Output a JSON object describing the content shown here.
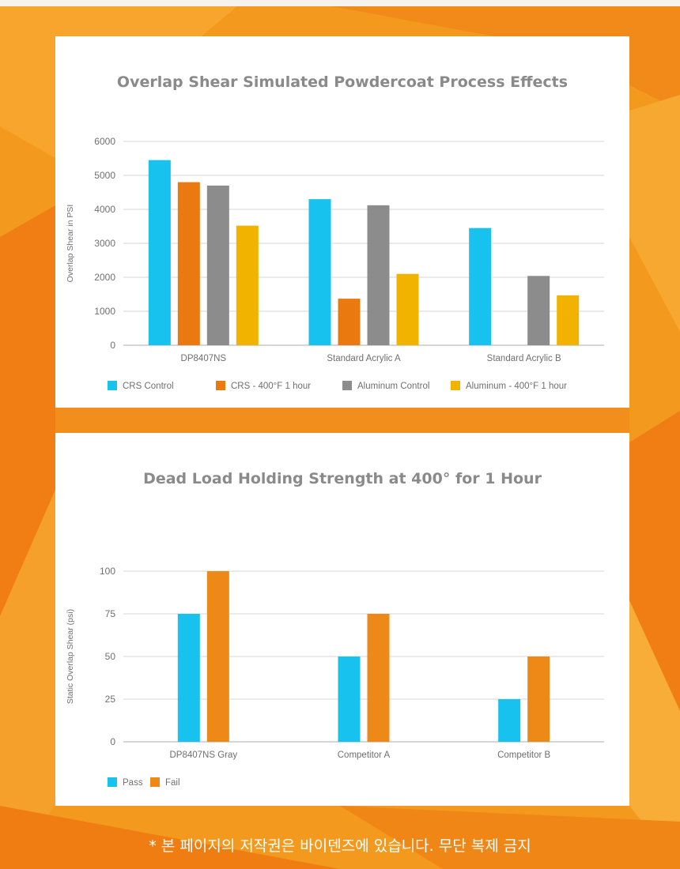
{
  "colors": {
    "background": "#f39a1e",
    "cyan": "#17c2ee",
    "orange": "#ea7a10",
    "gray": "#8c8c8c",
    "yellow": "#f2b300",
    "fail_orange": "#ec8917"
  },
  "chart_data": [
    {
      "type": "bar",
      "title": "Overlap Shear Simulated Powdercoat Process Effects",
      "xlabel": "",
      "ylabel": "Overlap Shear in PSI",
      "ylim": [
        0,
        6000
      ],
      "yticks": [
        0,
        1000,
        2000,
        3000,
        4000,
        5000,
        6000
      ],
      "grid": true,
      "legend_position": "bottom",
      "categories": [
        "DP8407NS",
        "Standard Acrylic A",
        "Standard Acrylic B"
      ],
      "series": [
        {
          "name": "CRS Control",
          "color": "#17c2ee",
          "values": [
            5450,
            4300,
            3450
          ]
        },
        {
          "name": "CRS - 400°F 1 hour",
          "color": "#ea7a10",
          "values": [
            4800,
            1370,
            null
          ]
        },
        {
          "name": "Aluminum Control",
          "color": "#8c8c8c",
          "values": [
            4700,
            4120,
            2040
          ]
        },
        {
          "name": "Aluminum - 400°F 1 hour",
          "color": "#f2b300",
          "values": [
            3520,
            2100,
            1470
          ]
        }
      ]
    },
    {
      "type": "bar",
      "title": "Dead Load Holding Strength at 400° for 1 Hour",
      "xlabel": "",
      "ylabel": "Static Overlap Shear (psi)",
      "ylim": [
        0,
        100
      ],
      "yticks": [
        0,
        25,
        50,
        75,
        100
      ],
      "grid": true,
      "legend_position": "bottom",
      "categories": [
        "DP8407NS Gray",
        "Competitor A",
        "Competitor B"
      ],
      "series": [
        {
          "name": "Pass",
          "color": "#17c2ee",
          "values": [
            75,
            50,
            25
          ]
        },
        {
          "name": "Fail",
          "color": "#ec8917",
          "values": [
            100,
            75,
            50
          ]
        }
      ]
    }
  ],
  "footer": {
    "text": "* 본 페이지의 저작권은 바이덴즈에 있습니다. 무단 복제 금지"
  }
}
